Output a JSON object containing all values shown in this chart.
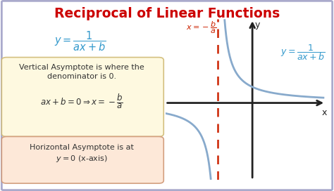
{
  "title": "Reciprocal of Linear Functions",
  "title_color": "#cc0000",
  "title_fontsize": 13.5,
  "bg_color": "#ffffff",
  "border_color": "#aaaacc",
  "formula_color": "#3399cc",
  "formula_text": "$y = \\dfrac{1}{ax+b}$",
  "box1_facecolor": "#fef9e0",
  "box1_edgecolor": "#d4c080",
  "box1_text1": "Vertical Asymptote is where the\ndenominator is 0.",
  "box1_formula": "$ax+b=0 \\Rightarrow x=-\\dfrac{b}{a}$",
  "box1_formula_color": "#cc3300",
  "box2_facecolor": "#fde8d8",
  "box2_edgecolor": "#d4a080",
  "box2_text": "Horizontal Asymptote is at\n$y=0$ (x-axis)",
  "asym_label_color": "#cc2200",
  "asym_label": "$x=-\\dfrac{b}{a}$",
  "curve_color": "#88aacc",
  "axis_color": "#222222",
  "graph_formula_color": "#3399cc",
  "graph_formula": "$y = \\dfrac{1}{ax+b}$",
  "text_color": "#333333"
}
